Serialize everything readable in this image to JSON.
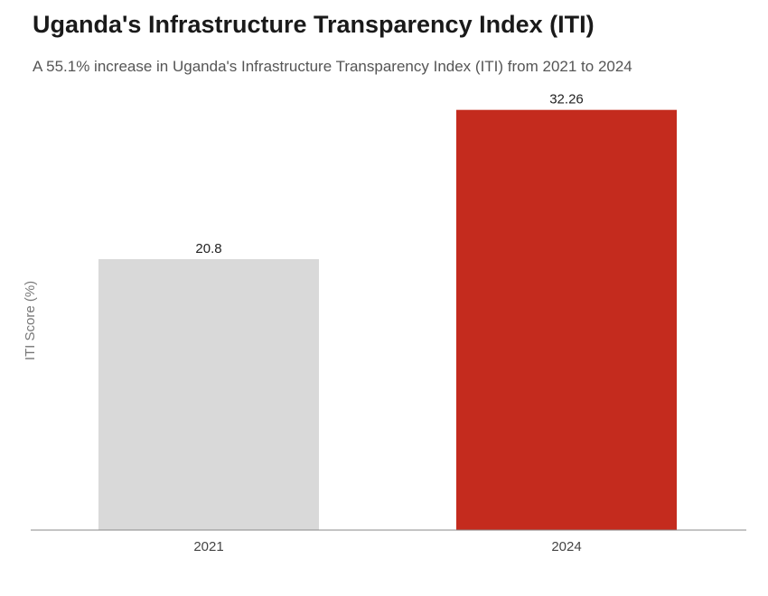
{
  "chart_data": {
    "type": "bar",
    "title": "Uganda's Infrastructure Transparency Index (ITI)",
    "subtitle": "A 55.1% increase in Uganda's Infrastructure Transparency Index (ITI) from 2021 to 2024",
    "xlabel": "",
    "ylabel": "ITI Score (%)",
    "categories": [
      "2021",
      "2024"
    ],
    "values": [
      20.8,
      32.26
    ],
    "value_labels": [
      "20.8",
      "32.26"
    ],
    "colors": [
      "#d9d9d9",
      "#c42b1e"
    ],
    "ylim": [
      0,
      33
    ],
    "grid": false,
    "legend": "none"
  }
}
